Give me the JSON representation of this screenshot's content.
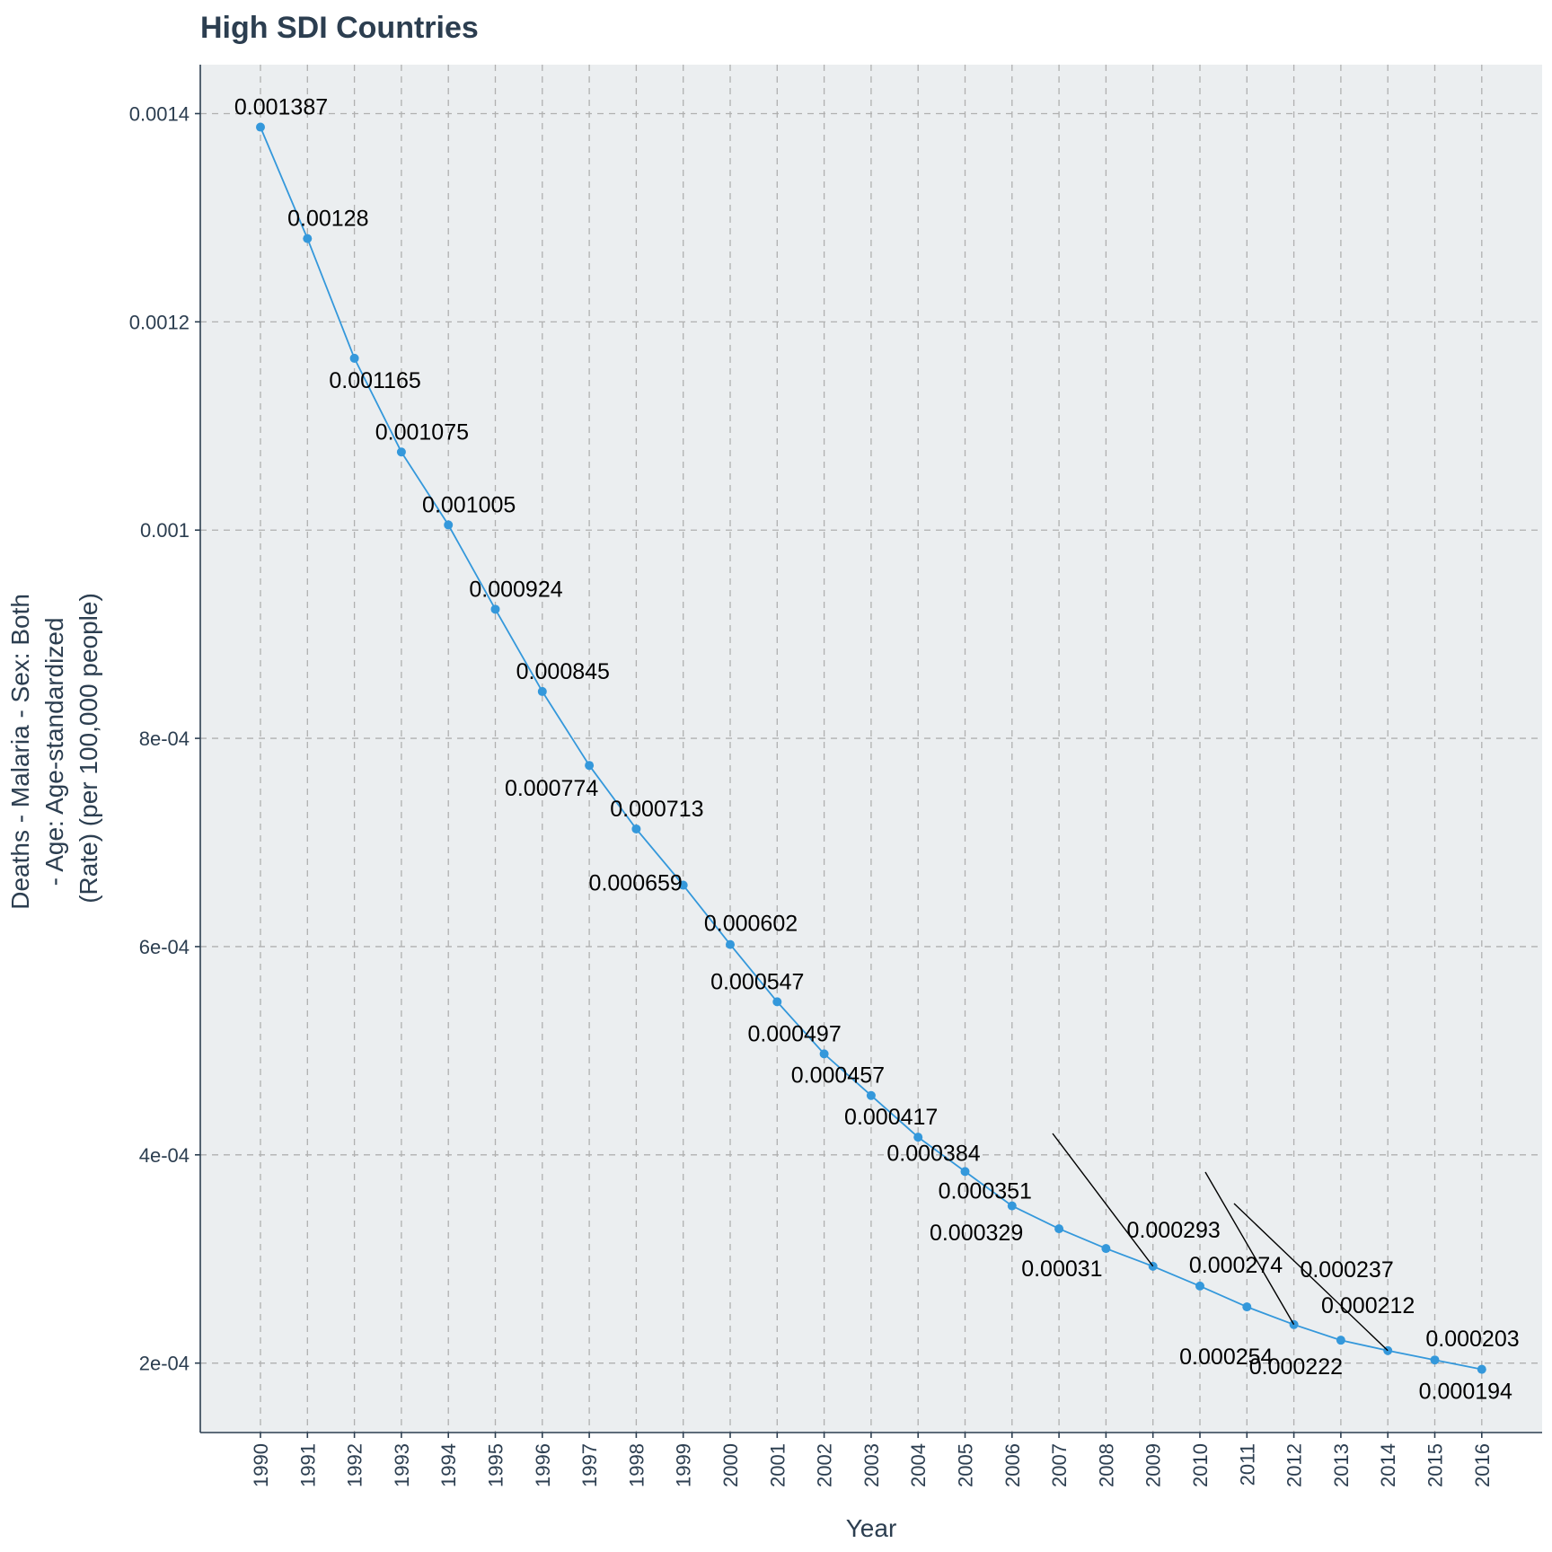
{
  "chart_data": {
    "type": "line",
    "title": "High SDI Countries",
    "xlabel": "Year",
    "ylabel_lines": [
      "Deaths - Malaria - Sex: Both",
      "- Age: Age-standardized",
      "(Rate) (per 100,000 people)"
    ],
    "x": [
      "1990",
      "1991",
      "1992",
      "1993",
      "1994",
      "1995",
      "1996",
      "1997",
      "1998",
      "1999",
      "2000",
      "2001",
      "2002",
      "2003",
      "2004",
      "2005",
      "2006",
      "2007",
      "2008",
      "2009",
      "2010",
      "2011",
      "2012",
      "2013",
      "2014",
      "2015",
      "2016"
    ],
    "series": [
      {
        "values": [
          0.001387,
          0.00128,
          0.001165,
          0.001075,
          0.001005,
          0.000924,
          0.000845,
          0.000774,
          0.000713,
          0.000659,
          0.000602,
          0.000547,
          0.000497,
          0.000457,
          0.000417,
          0.000384,
          0.000351,
          0.000329,
          0.00031,
          0.000293,
          0.000274,
          0.000254,
          0.000237,
          0.000222,
          0.000212,
          0.000203,
          0.000194
        ],
        "labels": [
          "0.001387",
          "0.00128",
          "0.001165",
          "0.001075",
          "0.001005",
          "0.000924",
          "0.000845",
          "0.000774",
          "0.000713",
          "0.000659",
          "0.000602",
          "0.000547",
          "0.000497",
          "0.000457",
          "0.000417",
          "0.000384",
          "0.000351",
          "0.000329",
          "0.00031",
          "0.000293",
          "0.000274",
          "0.000254",
          "0.000237",
          "0.000222",
          "0.000212",
          "0.000203",
          "0.000194"
        ]
      }
    ],
    "y_ticks": [
      0.0002,
      0.0004,
      0.0006,
      0.0008,
      0.001,
      0.0012,
      0.0014
    ],
    "y_tick_labels": [
      "2e-04",
      "4e-04",
      "6e-04",
      "8e-04",
      "0.001",
      "0.0012",
      "0.0014"
    ],
    "ylim": [
      0.0001333,
      0.001447
    ],
    "grid": true,
    "legend": "none",
    "colors": {
      "line": "#3498db",
      "panel": "#ebeef0",
      "grid": "#b0b0b0",
      "axis": "#2c3e50",
      "text": "#2c3e50"
    }
  }
}
